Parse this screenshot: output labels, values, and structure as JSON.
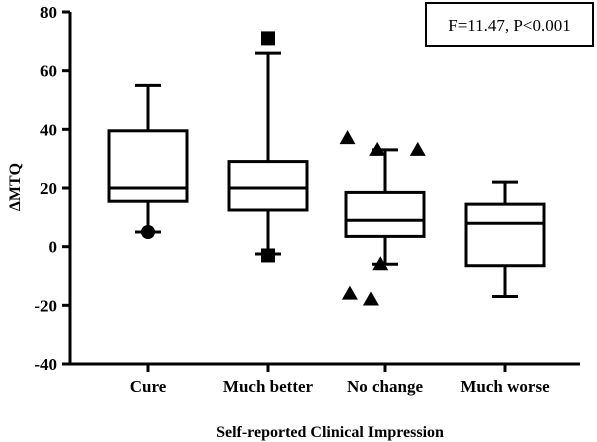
{
  "chart_data": {
    "type": "boxplot",
    "title": "",
    "xlabel": "Self-reported Clinical Impression",
    "ylabel": "ΔMTQ",
    "ylim": [
      -40,
      80
    ],
    "yticks": [
      80,
      60,
      40,
      20,
      0,
      -20,
      -40
    ],
    "ytick_labels": [
      "80",
      "60",
      "40",
      "20",
      "0",
      "-20",
      "-40"
    ],
    "annotation": "F=11.47, P<0.001",
    "grid": false,
    "categories": [
      "Cure",
      "Much better",
      "No change",
      "Much worse"
    ],
    "boxes": [
      {
        "category": "Cure",
        "whisker_low": 5,
        "q1": 15.5,
        "median": 20,
        "q3": 39.5,
        "whisker_high": 55,
        "outlier_marker": "circle",
        "outliers": [
          5
        ]
      },
      {
        "category": "Much better",
        "whisker_low": -2.5,
        "q1": 12.5,
        "median": 20,
        "q3": 29,
        "whisker_high": 66,
        "outlier_marker": "square",
        "outliers": [
          71,
          -3
        ]
      },
      {
        "category": "No change",
        "whisker_low": -6,
        "q1": 3.5,
        "median": 9,
        "q3": 18.5,
        "whisker_high": 33,
        "outlier_marker": "triangle",
        "outliers": [
          37,
          33,
          33,
          -6,
          -16,
          -18
        ]
      },
      {
        "category": "Much worse",
        "whisker_low": -17,
        "q1": -6.5,
        "median": 8,
        "q3": 14.5,
        "whisker_high": 22,
        "outlier_marker": "none",
        "outliers": []
      }
    ],
    "outlier_x_offsets": [
      [
        0
      ],
      [
        0,
        0
      ],
      [
        -0.48,
        -0.1,
        0.42,
        -0.06,
        -0.45,
        -0.18
      ],
      []
    ]
  }
}
